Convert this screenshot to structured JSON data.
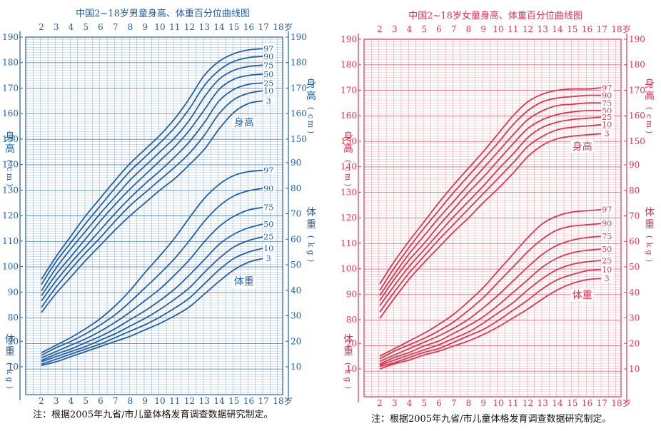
{
  "chart_data": [
    {
      "type": "line",
      "title": "中国2~18岁男童身高、体重百分位曲线图",
      "color": "#1f5fa8",
      "grid": true,
      "x_unit_label": "岁",
      "x_ticks": [
        "2",
        "3",
        "4",
        "5",
        "6",
        "7",
        "8",
        "9",
        "10",
        "11",
        "12",
        "13",
        "14",
        "15",
        "16",
        "17",
        "18"
      ],
      "xlim": [
        2,
        18
      ],
      "height_axis": {
        "label": [
          "身",
          "高"
        ],
        "unit": [
          "(",
          "c",
          "m",
          ")"
        ],
        "ylim": [
          75,
          190
        ],
        "left_ticks": [
          "80",
          "90",
          "100",
          "110",
          "120",
          "130",
          "140",
          "150",
          "160",
          "170",
          "180",
          "190"
        ],
        "right_ticks": [
          "150",
          "160",
          "170",
          "180",
          "190"
        ]
      },
      "weight_axis": {
        "label": [
          "体",
          "重"
        ],
        "unit": [
          "(",
          "k",
          "g",
          ")"
        ],
        "ylim": [
          5,
          95
        ],
        "left_ticks": [
          "10",
          "20"
        ],
        "right_ticks": [
          "10",
          "20",
          "30",
          "40",
          "50",
          "60",
          "70",
          "80",
          "90"
        ]
      },
      "height_tag": "身高",
      "weight_tag": "体重",
      "x": [
        2,
        3,
        4,
        5,
        6,
        7,
        8,
        9,
        10,
        11,
        12,
        13,
        14,
        15,
        16,
        17
      ],
      "height_series": [
        {
          "name": "97",
          "values": [
            95,
            104,
            112,
            120,
            127,
            134,
            140.5,
            146,
            151.5,
            158,
            166,
            175,
            180.5,
            183.5,
            185,
            185.5
          ]
        },
        {
          "name": "90",
          "values": [
            93,
            102,
            109.5,
            117,
            124,
            131,
            137.5,
            143,
            148.5,
            154.5,
            162,
            171,
            177,
            180.5,
            182,
            182.5
          ]
        },
        {
          "name": "75",
          "values": [
            90.5,
            99.5,
            107,
            114,
            121,
            127.5,
            134,
            139.5,
            145,
            150.5,
            157.5,
            166.5,
            173.5,
            177,
            178.5,
            179
          ]
        },
        {
          "name": "50",
          "values": [
            88.5,
            97,
            104,
            111,
            118,
            124.5,
            130.5,
            136,
            141.5,
            147,
            153.5,
            161.5,
            169.5,
            173.5,
            175,
            175.5
          ]
        },
        {
          "name": "25",
          "values": [
            86.5,
            94.5,
            101.5,
            108,
            114.5,
            121,
            127,
            132.5,
            137.5,
            143,
            149,
            156.5,
            165,
            169.5,
            171.5,
            172
          ]
        },
        {
          "name": "10",
          "values": [
            84,
            92,
            99,
            105.5,
            111.5,
            118,
            124,
            129,
            134,
            139,
            144.5,
            151.5,
            160,
            165.5,
            168,
            169
          ]
        },
        {
          "name": "3",
          "values": [
            82,
            89.5,
            96,
            102.5,
            108.5,
            114.5,
            120,
            125,
            130,
            134.5,
            140,
            146,
            154,
            160.5,
            164,
            165
          ]
        }
      ],
      "weight_series": [
        {
          "name": "97",
          "values": [
            15.5,
            18.5,
            21.5,
            25,
            29,
            34,
            40,
            47,
            53.5,
            60.5,
            68.5,
            76,
            81.5,
            85,
            86.5,
            87
          ]
        },
        {
          "name": "90",
          "values": [
            14.5,
            17.5,
            20,
            23,
            26.5,
            30.5,
            35.5,
            41,
            46.5,
            52.5,
            59.5,
            67,
            73,
            77,
            79,
            80
          ]
        },
        {
          "name": "75",
          "values": [
            13.5,
            16,
            18.5,
            21,
            24,
            27.5,
            31.5,
            36,
            40.5,
            46,
            52,
            59,
            65,
            69,
            71.5,
            72.5
          ]
        },
        {
          "name": "50",
          "values": [
            12.5,
            15,
            17,
            19.5,
            22,
            25,
            28.5,
            32,
            36,
            40.5,
            46,
            52,
            58,
            62,
            64.5,
            66
          ]
        },
        {
          "name": "25",
          "values": [
            12,
            14,
            16,
            18,
            20.5,
            23,
            26,
            29,
            32.5,
            36.5,
            41,
            47,
            52.5,
            57,
            59.5,
            61
          ]
        },
        {
          "name": "10",
          "values": [
            11,
            13,
            15,
            17,
            19,
            21.5,
            24,
            26.5,
            29.5,
            33,
            37,
            42.5,
            48,
            52.5,
            55,
            56.5
          ]
        },
        {
          "name": "3",
          "values": [
            10.5,
            12,
            14,
            16,
            18,
            20,
            22,
            24.5,
            27,
            30,
            33.5,
            38.5,
            43.5,
            48,
            51,
            52.5
          ]
        }
      ],
      "note": "注：根据2005年九省/市儿童体格发育调查数据研究制定。"
    },
    {
      "type": "line",
      "title": "中国2~18岁女童身高、体重百分位曲线图",
      "color": "#e0344e",
      "grid": true,
      "x_unit_label": "岁",
      "x_ticks": [
        "2",
        "3",
        "4",
        "5",
        "6",
        "7",
        "8",
        "9",
        "10",
        "11",
        "12",
        "13",
        "14",
        "15",
        "16",
        "17",
        "18"
      ],
      "xlim": [
        2,
        18
      ],
      "height_axis": {
        "label": [
          "身",
          "高"
        ],
        "unit": [
          "(",
          "c",
          "m",
          ")"
        ],
        "ylim": [
          75,
          190
        ],
        "left_ticks": [
          "80",
          "90",
          "100",
          "110",
          "120",
          "130",
          "140",
          "150",
          "160",
          "170",
          "180",
          "190"
        ],
        "right_ticks": [
          "150",
          "160",
          "170",
          "180",
          "190"
        ]
      },
      "weight_axis": {
        "label": [
          "体",
          "重"
        ],
        "unit": [
          "(",
          "k",
          "g",
          ")"
        ],
        "ylim": [
          5,
          95
        ],
        "left_ticks": [
          "10",
          "20"
        ],
        "right_ticks": [
          "10",
          "20",
          "30",
          "40",
          "50",
          "60",
          "70",
          "80",
          "90"
        ]
      },
      "height_tag": "身高",
      "weight_tag": "体重",
      "x": [
        2,
        3,
        4,
        5,
        6,
        7,
        8,
        9,
        10,
        11,
        12,
        13,
        14,
        15,
        16,
        17
      ],
      "height_series": [
        {
          "name": "97",
          "values": [
            94,
            103,
            111,
            118.5,
            126,
            133,
            139.5,
            146,
            153,
            160,
            165.5,
            168.5,
            170,
            170.5,
            170.5,
            171
          ]
        },
        {
          "name": "90",
          "values": [
            91.5,
            100.5,
            108.5,
            116,
            123,
            130,
            136.5,
            143,
            149.5,
            156.5,
            162,
            165.5,
            167,
            167.5,
            168,
            168
          ]
        },
        {
          "name": "75",
          "values": [
            89.5,
            98,
            106,
            113,
            120,
            126.5,
            133,
            139.5,
            146,
            152.5,
            158.5,
            162,
            164,
            164.5,
            165,
            165
          ]
        },
        {
          "name": "50",
          "values": [
            87.5,
            96,
            103.5,
            110,
            117,
            123.5,
            130,
            136,
            142.5,
            149,
            155,
            158.5,
            160.5,
            161.5,
            162,
            162
          ]
        },
        {
          "name": "25",
          "values": [
            85.5,
            93.5,
            101,
            107.5,
            114,
            120.5,
            126.5,
            132.5,
            139,
            145,
            151.5,
            155.5,
            157.5,
            158.5,
            159,
            159.5
          ]
        },
        {
          "name": "10",
          "values": [
            83,
            91,
            98.5,
            105,
            111.5,
            117.5,
            123.5,
            129.5,
            135.5,
            141.5,
            148,
            152,
            154.5,
            155.5,
            156,
            156.5
          ]
        },
        {
          "name": "3",
          "values": [
            80.5,
            88.5,
            96,
            102.5,
            108.5,
            114.5,
            120,
            126,
            131.5,
            137.5,
            144,
            148.5,
            151,
            152,
            152.5,
            153
          ]
        }
      ],
      "weight_series": [
        {
          "name": "97",
          "values": [
            15,
            18,
            21,
            24,
            27.5,
            31.5,
            36.5,
            42,
            48.5,
            55,
            61.5,
            67,
            70,
            71.5,
            72,
            72.5
          ]
        },
        {
          "name": "90",
          "values": [
            14,
            17,
            19.5,
            22,
            25,
            28.5,
            33,
            38,
            44,
            50,
            56,
            61,
            64.5,
            66,
            66.5,
            67
          ]
        },
        {
          "name": "75",
          "values": [
            13,
            15.5,
            18,
            20.5,
            23,
            26,
            29.5,
            34,
            39,
            44.5,
            50,
            55,
            58.5,
            60.5,
            61.5,
            62
          ]
        },
        {
          "name": "50",
          "values": [
            12,
            14.5,
            16.5,
            19,
            21,
            24,
            27,
            30.5,
            35,
            40,
            45,
            50,
            53.5,
            55.5,
            56.5,
            57
          ]
        },
        {
          "name": "25",
          "values": [
            11.5,
            13.5,
            15.5,
            17.5,
            19.5,
            22,
            24.5,
            28,
            32,
            36,
            41,
            45.5,
            49,
            51,
            52,
            52.5
          ]
        },
        {
          "name": "10",
          "values": [
            11,
            12.5,
            14.5,
            16.5,
            18,
            20.5,
            23,
            25.5,
            29,
            33,
            37,
            41.5,
            45,
            47,
            48.5,
            49
          ]
        },
        {
          "name": "3",
          "values": [
            10,
            12,
            13.5,
            15.5,
            17,
            19,
            21,
            23.5,
            26.5,
            30,
            33.5,
            37.5,
            41,
            43.5,
            45,
            45.5
          ]
        }
      ],
      "note": "注：根据2005年九省/市儿童体格发育调查数据研究制定。"
    }
  ]
}
